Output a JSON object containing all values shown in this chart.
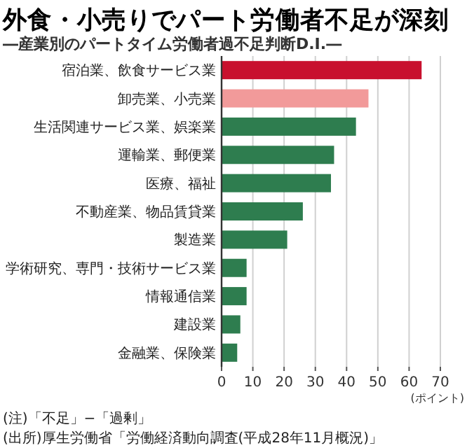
{
  "chart_data": {
    "type": "bar",
    "orientation": "horizontal",
    "title": "外食・小売りでパート労働者不足が深刻",
    "subtitle": "―産業別のパートタイム労働者過不足判断D.I.―",
    "xlabel": "(ポイント)",
    "categories": [
      "宿泊業、飲食サービス業",
      "卸売業、小売業",
      "生活関連サービス業、娯楽業",
      "運輸業、郵便業",
      "医療、福祉",
      "不動産業、物品賃貸業",
      "製造業",
      "学術研究、専門・技術サービス業",
      "情報通信業",
      "建設業",
      "金融業、保険業"
    ],
    "values": [
      64,
      47,
      43,
      36,
      35,
      26,
      21,
      8,
      8,
      6,
      5
    ],
    "colors": [
      "#c8102e",
      "#f29a9a",
      "#2e7d4f",
      "#2e7d4f",
      "#2e7d4f",
      "#2e7d4f",
      "#2e7d4f",
      "#2e7d4f",
      "#2e7d4f",
      "#2e7d4f",
      "#2e7d4f"
    ],
    "xlim": [
      0,
      70
    ],
    "xticks": [
      0,
      10,
      20,
      30,
      40,
      50,
      60,
      70
    ],
    "grid": "x",
    "annotations": [
      "(注)「不足」−「過剰」",
      "(出所)厚生労働省「労働経済動向調査(平成28年11月概況)」"
    ]
  }
}
